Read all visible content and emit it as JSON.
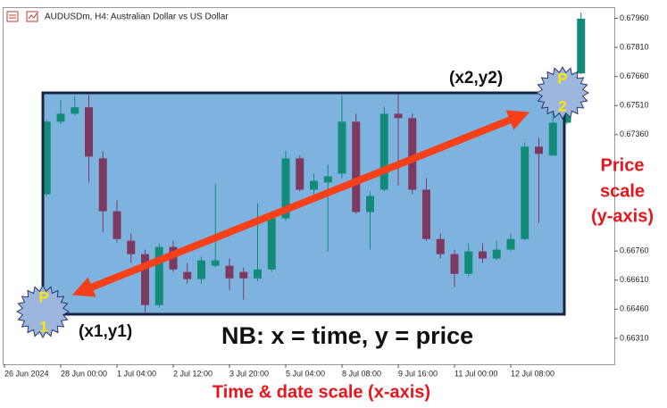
{
  "chart_data": {
    "type": "candlestick",
    "title": "AUDUSDm, H4:  Australian Dollar vs US Dollar",
    "x_label": "Time & date scale (x-axis)",
    "categories": [
      "26 Jun 2024",
      null,
      null,
      null,
      "28 Jun 00:00",
      null,
      null,
      null,
      "1 Jul 04:00",
      null,
      null,
      null,
      "2 Jul 12:00",
      null,
      null,
      null,
      "3 Jul 20:00",
      null,
      null,
      null,
      "5 Jul 04:00",
      null,
      null,
      null,
      "8 Jul 08:00",
      null,
      null,
      null,
      "9 Jul 16:00",
      null,
      null,
      null,
      "11 Jul 00:00",
      null,
      null,
      null,
      "12 Jul 08:00",
      null,
      null,
      null,
      null,
      null
    ],
    "open": [
      null,
      null,
      null,
      0.67053,
      0.67427,
      0.67468,
      0.67501,
      0.67238,
      0.66965,
      0.66813,
      0.66744,
      0.66481,
      0.66781,
      0.66652,
      0.66615,
      0.66684,
      0.66684,
      0.66652,
      0.66619,
      0.66665,
      0.66928,
      0.67238,
      0.67076,
      0.67113,
      0.67159,
      0.67427,
      0.66961,
      0.67076,
      0.67468,
      0.67445,
      0.67076,
      0.66822,
      0.66744,
      0.66642,
      0.66758,
      0.66721,
      0.66767,
      0.66822,
      0.67298,
      0.67252,
      0.67422,
      0.67676
    ],
    "high": [
      null,
      null,
      null,
      0.67436,
      0.67538,
      0.67561,
      0.67565,
      0.67275,
      0.67021,
      0.6685,
      0.66767,
      0.66799,
      0.66813,
      0.66698,
      0.6673,
      0.67104,
      0.66721,
      0.66675,
      0.67007,
      0.66952,
      0.67275,
      0.67252,
      0.67159,
      0.67205,
      0.67561,
      0.67468,
      0.67067,
      0.67505,
      0.6757,
      0.67468,
      0.67136,
      0.6685,
      0.66767,
      0.66799,
      0.66799,
      0.66813,
      0.6685,
      0.67321,
      0.67344,
      0.67538,
      0.67653,
      0.6799
    ],
    "low": [
      null,
      null,
      null,
      0.67044,
      0.67413,
      0.67459,
      0.67113,
      0.66859,
      0.66804,
      0.66698,
      0.66444,
      0.66467,
      0.66652,
      0.66592,
      0.66592,
      0.66675,
      0.66559,
      0.66509,
      0.66605,
      0.66652,
      0.66915,
      0.67067,
      0.67053,
      0.66758,
      0.67136,
      0.66952,
      0.66767,
      0.67067,
      0.67099,
      0.67053,
      0.66813,
      0.66721,
      0.66573,
      0.66629,
      0.66698,
      0.66712,
      0.66758,
      0.66813,
      0.66905,
      0.67261,
      0.67413,
      0.67672
    ],
    "close": [
      null,
      null,
      null,
      0.67427,
      0.67468,
      0.67501,
      0.67247,
      0.66965,
      0.66822,
      0.66744,
      0.66481,
      0.66781,
      0.66665,
      0.66615,
      0.66712,
      0.66712,
      0.66619,
      0.66619,
      0.66665,
      0.66928,
      0.67238,
      0.67076,
      0.67122,
      0.67145,
      0.67427,
      0.66961,
      0.67044,
      0.67468,
      0.67445,
      0.67076,
      0.66822,
      0.66744,
      0.66642,
      0.66758,
      0.66721,
      0.66767,
      0.66822,
      0.67298,
      0.67261,
      0.67422,
      0.67598,
      0.67958
    ],
    "up_color": "#128b78",
    "down_color": "#7b3a5e",
    "ylim": [
      0.66176,
      0.68013
    ],
    "yticks": [
      {
        "value": 0.6796,
        "label": "0.67960"
      },
      {
        "value": 0.6781,
        "label": "0.67810"
      },
      {
        "value": 0.6766,
        "label": "0.67660"
      },
      {
        "value": 0.6751,
        "label": "0.67510"
      },
      {
        "value": 0.6736,
        "label": "0.67360"
      },
      {
        "value": 0.6676,
        "label": "0.66760"
      },
      {
        "value": 0.6661,
        "label": "0.66610"
      },
      {
        "value": 0.6646,
        "label": "0.66460"
      },
      {
        "value": 0.6631,
        "label": "0.66310"
      }
    ],
    "annotations": {
      "point1_letter": "P",
      "point1_number": "1",
      "point1_label": "(x1,y1)",
      "point2_letter": "P",
      "point2_number": "2",
      "point2_label": "(x2,y2)",
      "note": "NB: x = time, y = price",
      "y_scale_note": [
        "Price",
        "scale",
        "(y-axis)"
      ]
    }
  }
}
